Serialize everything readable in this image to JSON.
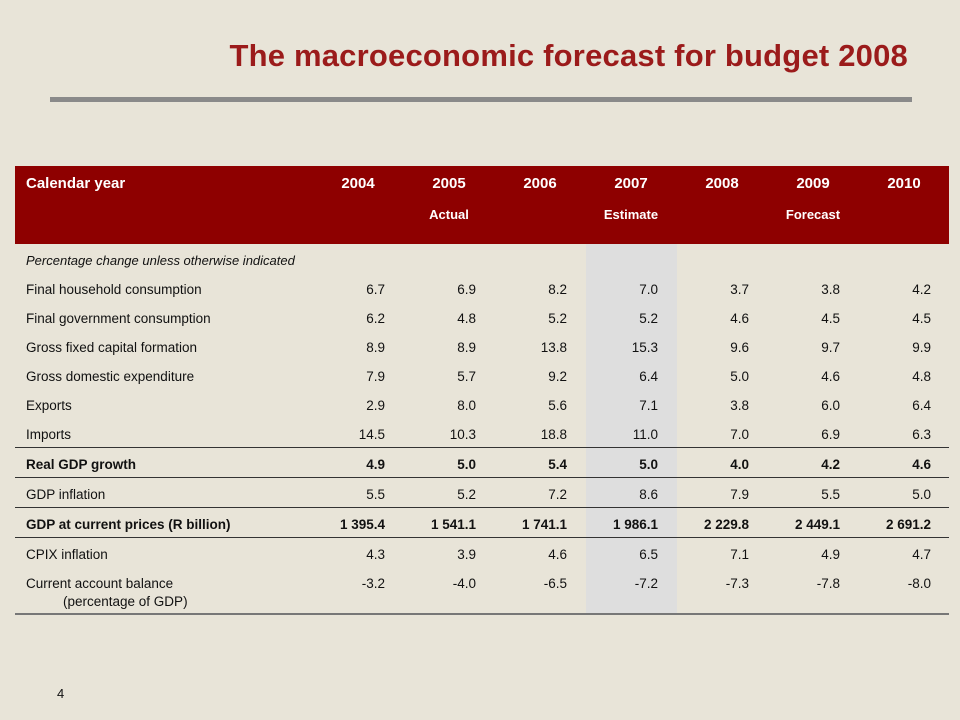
{
  "slide": {
    "title": "The macroeconomic forecast for budget 2008",
    "page_number": "4"
  },
  "table": {
    "header_label": "Calendar year",
    "years": [
      "2004",
      "2005",
      "2006",
      "2007",
      "2008",
      "2009",
      "2010"
    ],
    "sublabels": {
      "actual": "Actual",
      "estimate": "Estimate",
      "forecast": "Forecast"
    },
    "note": "Percentage change unless otherwise indicated",
    "rows": [
      {
        "label": "Final household consumption",
        "values": [
          "6.7",
          "6.9",
          "8.2",
          "7.0",
          "3.7",
          "3.8",
          "4.2"
        ]
      },
      {
        "label": "Final government consumption",
        "values": [
          "6.2",
          "4.8",
          "5.2",
          "5.2",
          "4.6",
          "4.5",
          "4.5"
        ]
      },
      {
        "label": "Gross fixed capital formation",
        "values": [
          "8.9",
          "8.9",
          "13.8",
          "15.3",
          "9.6",
          "9.7",
          "9.9"
        ]
      },
      {
        "label": "Gross domestic expenditure",
        "values": [
          "7.9",
          "5.7",
          "9.2",
          "6.4",
          "5.0",
          "4.6",
          "4.8"
        ]
      },
      {
        "label": "Exports",
        "values": [
          "2.9",
          "8.0",
          "5.6",
          "7.1",
          "3.8",
          "6.0",
          "6.4"
        ]
      },
      {
        "label": "Imports",
        "values": [
          "14.5",
          "10.3",
          "18.8",
          "11.0",
          "7.0",
          "6.9",
          "6.3"
        ]
      },
      {
        "label": "Real GDP growth",
        "values": [
          "4.9",
          "5.0",
          "5.4",
          "5.0",
          "4.0",
          "4.2",
          "4.6"
        ]
      },
      {
        "label": "GDP inflation",
        "values": [
          "5.5",
          "5.2",
          "7.2",
          "8.6",
          "7.9",
          "5.5",
          "5.0"
        ]
      },
      {
        "label": "GDP at current prices (R billion)",
        "values": [
          "1 395.4",
          "1 541.1",
          "1 741.1",
          "1 986.1",
          "2 229.8",
          "2 449.1",
          "2 691.2"
        ]
      },
      {
        "label": "CPIX inflation",
        "values": [
          "4.3",
          "3.9",
          "4.6",
          "6.5",
          "7.1",
          "4.9",
          "4.7"
        ]
      },
      {
        "label": "Current account balance",
        "label2": "(percentage of GDP)",
        "values": [
          "-3.2",
          "-4.0",
          "-6.5",
          "-7.2",
          "-7.3",
          "-7.8",
          "-8.0"
        ]
      }
    ]
  },
  "colors": {
    "title": "#9b1b1b",
    "header_bg": "#8e0000",
    "background": "#e8e4d8",
    "estimate_shade": "#dedede"
  }
}
